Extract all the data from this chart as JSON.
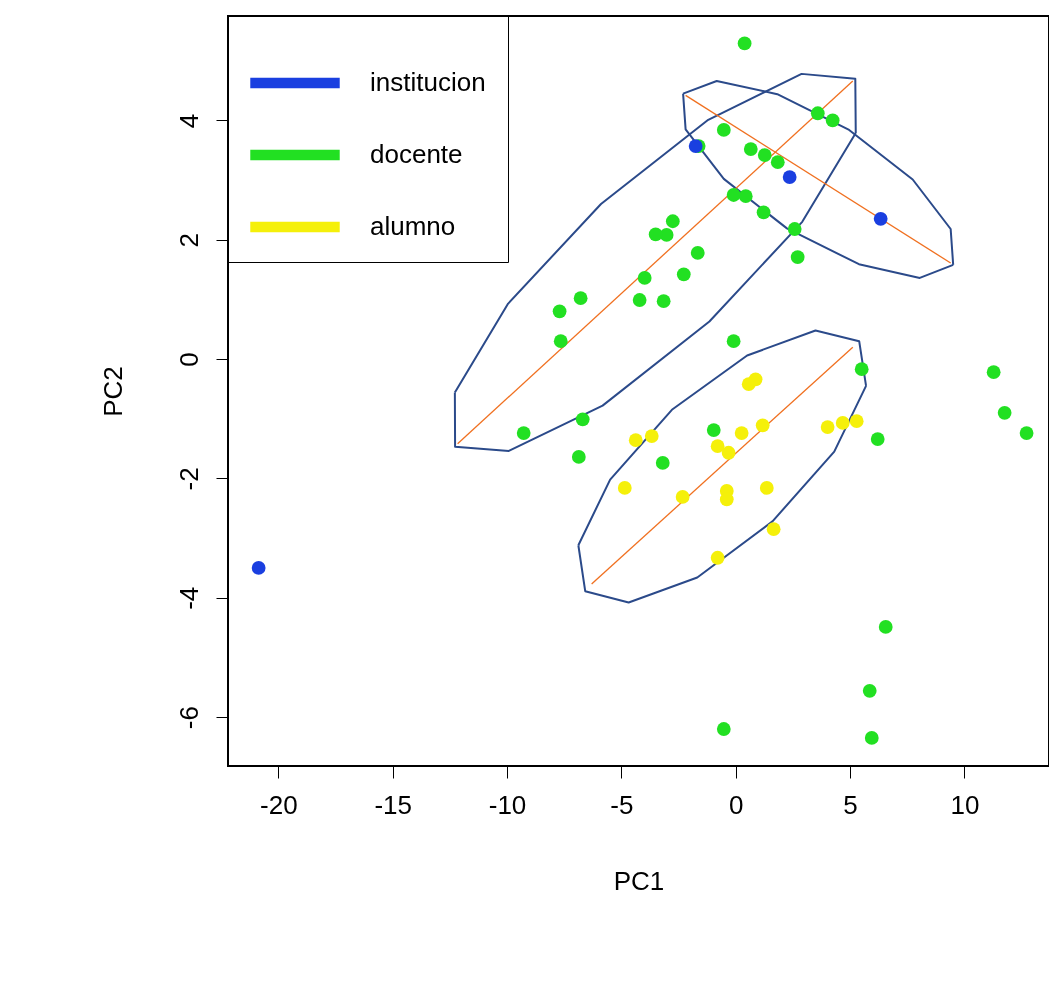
{
  "chart_data": {
    "type": "scatter",
    "xlabel": "PC1",
    "ylabel": "PC2",
    "xlim": [
      -22.2,
      13.7
    ],
    "ylim": [
      -6.82,
      5.75
    ],
    "xticks": [
      -20,
      -15,
      -10,
      -5,
      0,
      5,
      10
    ],
    "yticks": [
      -6,
      -4,
      -2,
      0,
      2,
      4
    ],
    "grid": false,
    "legend": "top left",
    "marker": "circle",
    "series": [
      {
        "type": "line",
        "marker": "none",
        "color": "#2b4a8a",
        "x": [
          -12.28,
          -12.27,
          -9.92,
          -5.82,
          -1.15,
          2.91,
          5.25
        ],
        "values": [
          -0.56,
          -1.47,
          -1.54,
          -0.78,
          0.63,
          2.3,
          3.79
        ]
      },
      {
        "type": "line",
        "marker": "none",
        "color": "#2b4a8a",
        "x": [
          -12.28,
          -9.95,
          -5.89,
          -1.2,
          2.88,
          5.23,
          5.25
        ],
        "values": [
          -0.56,
          0.93,
          2.6,
          4.01,
          4.78,
          4.7,
          3.79
        ]
      },
      {
        "type": "line",
        "marker": "none",
        "color": "#2b4a8a",
        "x": [
          -2.3,
          -2.19,
          -0.52,
          2.24,
          5.39,
          8.05,
          9.51
        ],
        "values": [
          4.45,
          3.85,
          3.02,
          2.19,
          1.59,
          1.36,
          1.58
        ]
      },
      {
        "type": "line",
        "marker": "none",
        "color": "#2b4a8a",
        "x": [
          -2.3,
          -0.83,
          1.82,
          4.96,
          7.74,
          9.4,
          9.51
        ],
        "values": [
          4.45,
          4.66,
          4.44,
          3.84,
          3.01,
          2.18,
          1.58
        ]
      },
      {
        "type": "line",
        "marker": "none",
        "color": "#2b4a8a",
        "x": [
          -6.88,
          -6.58,
          -4.68,
          -1.68,
          1.61,
          4.31,
          5.7
        ],
        "values": [
          -3.12,
          -3.89,
          -4.08,
          -3.66,
          -2.72,
          -1.55,
          -0.45
        ]
      },
      {
        "type": "line",
        "marker": "none",
        "color": "#2b4a8a",
        "x": [
          -6.88,
          -5.49,
          -2.79,
          0.5,
          3.49,
          5.4,
          5.7
        ],
        "values": [
          -3.12,
          -2.02,
          -0.85,
          0.06,
          0.48,
          0.3,
          -0.45
        ]
      },
      {
        "type": "line",
        "marker": "none",
        "color": "#f07020",
        "x": [
          -12.16,
          5.12
        ],
        "values": [
          -1.42,
          4.66
        ]
      },
      {
        "type": "line",
        "marker": "none",
        "color": "#f07020",
        "x": [
          -2.19,
          9.4
        ],
        "values": [
          4.42,
          1.61
        ]
      },
      {
        "type": "line",
        "marker": "none",
        "color": "#f07020",
        "x": [
          -6.3,
          5.12
        ],
        "values": [
          -3.77,
          0.2
        ]
      },
      {
        "name": "institucion",
        "color": "#1a3fe0",
        "x": [
          -1.75,
          2.36,
          6.34,
          -20.86
        ],
        "values": [
          3.57,
          3.05,
          2.35,
          -3.5
        ]
      },
      {
        "name": "docente",
        "color": "#22e022",
        "x": [
          0.39,
          3.59,
          4.24,
          -0.52,
          -1.62,
          0.66,
          1.27,
          1.84,
          -0.09,
          0.44,
          1.22,
          -2.75,
          -3.02,
          -3.5,
          2.58,
          -1.66,
          2.71,
          -3.98,
          -2.27,
          -6.78,
          -4.2,
          -3.15,
          -7.7,
          -7.65,
          -0.09,
          5.51,
          11.28,
          11.76,
          12.72,
          -9.27,
          -6.69,
          -0.96,
          6.21,
          -6.86,
          -3.19,
          6.56,
          5.86,
          -0.52,
          5.95
        ],
        "values": [
          5.29,
          4.12,
          4.0,
          3.84,
          3.57,
          3.52,
          3.42,
          3.3,
          2.75,
          2.73,
          2.46,
          2.31,
          2.08,
          2.09,
          2.18,
          1.78,
          1.71,
          1.36,
          1.42,
          1.02,
          0.99,
          0.97,
          0.8,
          0.3,
          0.3,
          -0.17,
          -0.22,
          -0.9,
          -1.24,
          -1.24,
          -1.01,
          -1.19,
          -1.34,
          -1.64,
          -1.74,
          -4.49,
          -5.56,
          -6.2,
          -6.35
        ]
      },
      {
        "name": "alumno",
        "color": "#f5f00a",
        "x": [
          0.87,
          0.57,
          5.29,
          4.68,
          4.02,
          1.18,
          0.26,
          -4.37,
          -3.67,
          -0.79,
          -0.31,
          -4.85,
          -2.32,
          1.36,
          -0.39,
          -0.39,
          1.66,
          -0.79
        ],
        "values": [
          -0.34,
          -0.42,
          -1.04,
          -1.07,
          -1.14,
          -1.11,
          -1.24,
          -1.36,
          -1.29,
          -1.46,
          -1.57,
          -2.16,
          -2.31,
          -2.16,
          -2.21,
          -2.35,
          -2.85,
          -3.33
        ]
      }
    ]
  }
}
